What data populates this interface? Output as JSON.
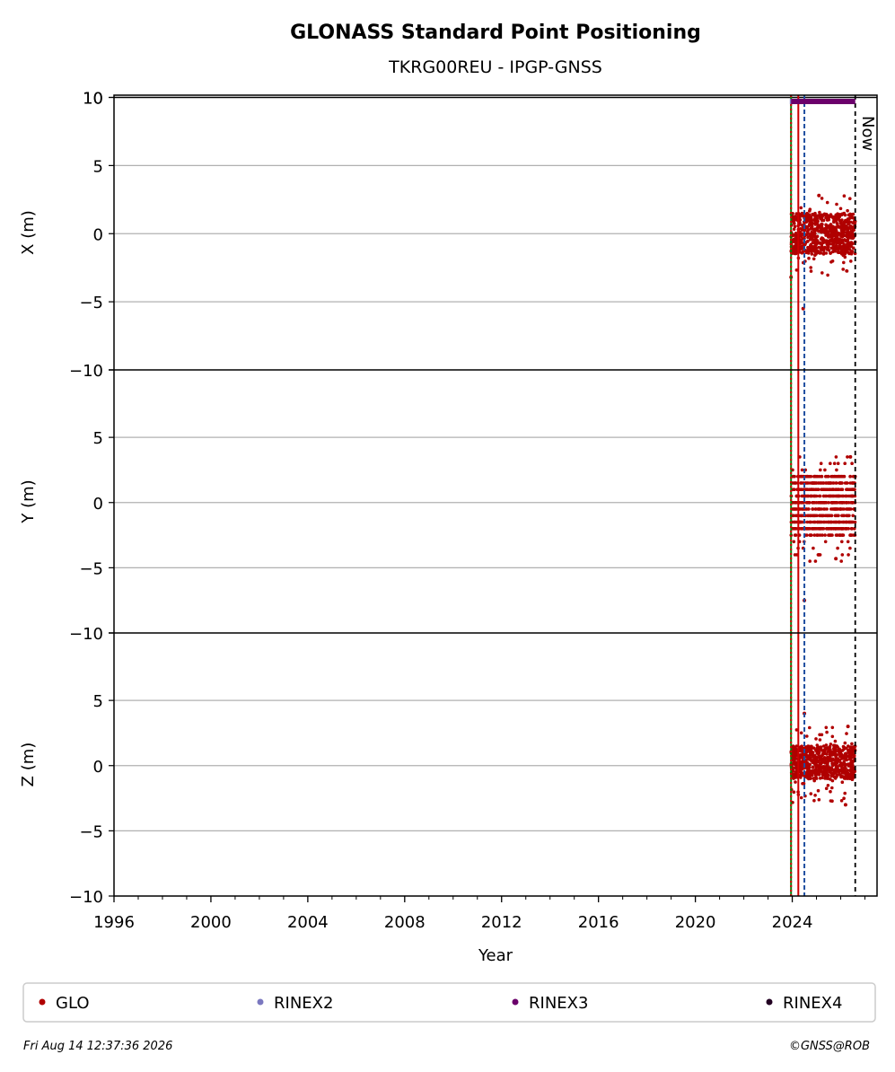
{
  "title": "GLONASS Standard Point Positioning",
  "subtitle": "TKRG00REU - IPGP-GNSS",
  "now_label": "Now",
  "footer": {
    "timestamp": "Fri Aug 14 12:37:36 2026",
    "copyright": "©GNSS@ROB"
  },
  "colors": {
    "GLO": "#b00000",
    "RINEX2": "#7b78c0",
    "RINEX3": "#6b006b",
    "RINEX4": "#220022",
    "vline_green": "#0a7a0a",
    "vline_red": "#cc0000",
    "vline_blue": "#1f4fa0",
    "grid": "#b0b0b0"
  },
  "chart_data": {
    "type": "scatter",
    "xlabel": "Year",
    "xlim": [
      1996,
      2027.5
    ],
    "x_ticks": [
      "1996",
      "2000",
      "2004",
      "2008",
      "2012",
      "2016",
      "2020",
      "2024"
    ],
    "x_tick_values": [
      1996,
      2000,
      2004,
      2008,
      2012,
      2016,
      2020,
      2024
    ],
    "now": 2026.6,
    "vertical_lines": [
      {
        "x": 2023.95,
        "color": "green",
        "style": "solid"
      },
      {
        "x": 2023.95,
        "color": "red",
        "style": "dotted"
      },
      {
        "x": 2024.25,
        "color": "red",
        "style": "solid"
      },
      {
        "x": 2024.5,
        "color": "blue",
        "style": "dashed"
      }
    ],
    "rinex_coverage": [
      {
        "series": "RINEX2",
        "start": 2023.9,
        "end": 2024.05
      },
      {
        "series": "RINEX3",
        "start": 2023.95,
        "end": 2026.6
      }
    ],
    "panels": [
      {
        "ylabel": "X (m)",
        "ylim": [
          -10,
          10
        ],
        "yticks": [
          10,
          5,
          0,
          -5
        ],
        "ytick_labels": [
          "10",
          "5",
          "0",
          "−5"
        ],
        "scatter": {
          "series": "GLO",
          "x_range": [
            2023.95,
            2026.6
          ],
          "core": [
            -1.5,
            1.5
          ],
          "extremes": [
            -3.2,
            2.8
          ]
        },
        "outliers": [
          {
            "x": 2024.45,
            "y": -5.5
          },
          {
            "x": 2023.95,
            "y": -3.2
          },
          {
            "x": 2025.1,
            "y": 2.8
          }
        ]
      },
      {
        "ylabel": "Y (m)",
        "ylim": [
          -10,
          10
        ],
        "yticks": [
          -10,
          5,
          0,
          -5
        ],
        "ytick_labels": [
          "−10",
          "5",
          "0",
          "−5"
        ],
        "scatter": {
          "series": "GLO",
          "x_range": [
            2023.95,
            2026.6
          ],
          "core": [
            -2.5,
            2.0
          ],
          "extremes": [
            -4.3,
            3.5
          ]
        },
        "outliers": [
          {
            "x": 2024.5,
            "y": -7.5
          },
          {
            "x": 2025.8,
            "y": -4.3
          },
          {
            "x": 2026.4,
            "y": 3.5
          }
        ]
      },
      {
        "ylabel": "Z (m)",
        "ylim": [
          -10,
          10
        ],
        "yticks": [
          -10,
          5,
          0,
          -5,
          -10
        ],
        "ytick_labels": [
          "−10",
          "5",
          "0",
          "−5",
          "−10"
        ],
        "scatter": {
          "series": "GLO",
          "x_range": [
            2023.95,
            2026.6
          ],
          "core": [
            -1.0,
            1.5
          ],
          "extremes": [
            -3.0,
            3.0
          ]
        },
        "outliers": [
          {
            "x": 2024.5,
            "y": 4.0
          },
          {
            "x": 2026.3,
            "y": 3.0
          },
          {
            "x": 2026.2,
            "y": -3.0
          }
        ]
      }
    ],
    "legend": {
      "placement": "bottom",
      "entries": [
        {
          "label": "GLO",
          "color_key": "GLO"
        },
        {
          "label": "RINEX2",
          "color_key": "RINEX2"
        },
        {
          "label": "RINEX3",
          "color_key": "RINEX3"
        },
        {
          "label": "RINEX4",
          "color_key": "RINEX4"
        }
      ]
    }
  }
}
